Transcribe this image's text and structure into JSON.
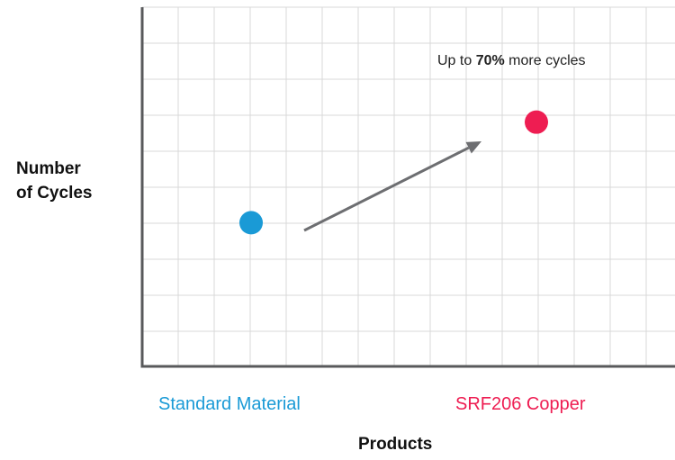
{
  "chart_data": {
    "type": "scatter",
    "title": "",
    "xlabel": "Products",
    "ylabel_lines": [
      "Number",
      "of Cycles"
    ],
    "categories": [
      "Standard Material",
      "SRF206 Copper"
    ],
    "values": [
      1,
      1.7
    ],
    "point_colors": [
      "#1a9ad6",
      "#ee1d52"
    ],
    "ylim": [
      0,
      2.5
    ],
    "grid": true,
    "annotation": {
      "prefix": "Up to ",
      "emphasis": "70%",
      "suffix": " more cycles"
    },
    "arrow": {
      "from_category": "Standard Material",
      "to_category": "SRF206 Copper",
      "color": "#6d6e71"
    }
  }
}
